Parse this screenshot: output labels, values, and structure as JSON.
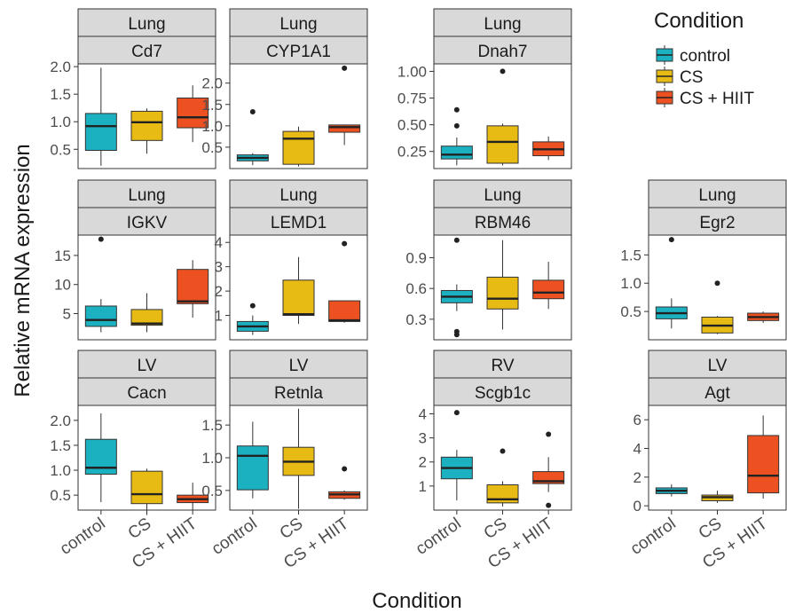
{
  "figure": {
    "ylabel": "Relative mRNA expression",
    "xlabel": "Condition",
    "legend": {
      "title": "Condition",
      "position": "top-right",
      "items": [
        {
          "label": "control",
          "color": "#1BB1C1"
        },
        {
          "label": "CS",
          "color": "#E8BB14"
        },
        {
          "label": "CS + HIIT",
          "color": "#EE5121"
        }
      ]
    },
    "x_tick_labels": [
      "control",
      "CS",
      "CS + HIIT"
    ]
  },
  "chart_data": [
    {
      "type": "boxplot",
      "tissue": "Lung",
      "gene": "Cd7",
      "ylim": [
        0.15,
        2.05
      ],
      "yticks": [
        0.5,
        1.0,
        1.5,
        2.0
      ],
      "ytick_labels": [
        "0.5",
        "1.0",
        "1.5",
        "2.0"
      ],
      "boxes": [
        {
          "condition": "control",
          "min": 0.2,
          "q1": 0.48,
          "median": 0.92,
          "q3": 1.15,
          "max": 1.98,
          "outliers": []
        },
        {
          "condition": "CS",
          "min": 0.42,
          "q1": 0.66,
          "median": 0.99,
          "q3": 1.19,
          "max": 1.24,
          "outliers": []
        },
        {
          "condition": "CS + HIIT",
          "min": 0.63,
          "q1": 0.89,
          "median": 1.08,
          "q3": 1.43,
          "max": 1.66,
          "outliers": []
        }
      ]
    },
    {
      "type": "boxplot",
      "tissue": "Lung",
      "gene": "CYP1A1",
      "ylim": [
        0.0,
        2.45
      ],
      "yticks": [
        0.5,
        1.0,
        1.5,
        2.0
      ],
      "ytick_labels": [
        "0.5",
        "1.0",
        "1.5",
        "2.0"
      ],
      "boxes": [
        {
          "condition": "control",
          "min": 0.08,
          "q1": 0.18,
          "median": 0.25,
          "q3": 0.32,
          "max": 0.36,
          "outliers": [
            1.33
          ]
        },
        {
          "condition": "CS",
          "min": 0.05,
          "q1": 0.1,
          "median": 0.7,
          "q3": 0.87,
          "max": 0.98,
          "outliers": []
        },
        {
          "condition": "CS + HIIT",
          "min": 0.55,
          "q1": 0.85,
          "median": 0.97,
          "q3": 1.02,
          "max": 1.03,
          "outliers": [
            2.35
          ]
        }
      ]
    },
    {
      "type": "boxplot",
      "tissue": "Lung",
      "gene": "Dnah7",
      "ylim": [
        0.09,
        1.07
      ],
      "yticks": [
        0.25,
        0.5,
        0.75,
        1.0
      ],
      "ytick_labels": [
        "0.25",
        "0.50",
        "0.75",
        "1.00"
      ],
      "boxes": [
        {
          "condition": "control",
          "min": 0.12,
          "q1": 0.18,
          "median": 0.22,
          "q3": 0.3,
          "max": 0.38,
          "outliers": [
            0.49,
            0.64
          ]
        },
        {
          "condition": "CS",
          "min": 0.12,
          "q1": 0.14,
          "median": 0.34,
          "q3": 0.49,
          "max": 0.51,
          "outliers": [
            1.0
          ]
        },
        {
          "condition": "CS + HIIT",
          "min": 0.17,
          "q1": 0.21,
          "median": 0.27,
          "q3": 0.34,
          "max": 0.39,
          "outliers": []
        }
      ]
    },
    {
      "type": "boxplot",
      "tissue": "Lung",
      "gene": "IGKV",
      "ylim": [
        0.5,
        18.5
      ],
      "yticks": [
        5,
        10,
        15
      ],
      "ytick_labels": [
        "5",
        "10",
        "15"
      ],
      "boxes": [
        {
          "condition": "control",
          "min": 1.8,
          "q1": 2.8,
          "median": 3.9,
          "q3": 6.3,
          "max": 7.5,
          "outliers": [
            17.8
          ]
        },
        {
          "condition": "CS",
          "min": 1.8,
          "q1": 3.0,
          "median": 3.3,
          "q3": 5.7,
          "max": 8.5,
          "outliers": []
        },
        {
          "condition": "CS + HIIT",
          "min": 4.3,
          "q1": 6.7,
          "median": 7.1,
          "q3": 12.6,
          "max": 14.2,
          "outliers": []
        }
      ]
    },
    {
      "type": "boxplot",
      "tissue": "Lung",
      "gene": "LEMD1",
      "ylim": [
        0.0,
        4.3
      ],
      "yticks": [
        1,
        2,
        3,
        4
      ],
      "ytick_labels": [
        "1",
        "2",
        "3",
        "4"
      ],
      "boxes": [
        {
          "condition": "control",
          "min": 0.2,
          "q1": 0.35,
          "median": 0.55,
          "q3": 0.75,
          "max": 1.0,
          "outliers": [
            1.4
          ]
        },
        {
          "condition": "CS",
          "min": 0.65,
          "q1": 1.0,
          "median": 1.05,
          "q3": 2.45,
          "max": 3.4,
          "outliers": []
        },
        {
          "condition": "CS + HIIT",
          "min": 0.7,
          "q1": 0.75,
          "median": 0.8,
          "q3": 1.6,
          "max": 1.6,
          "outliers": [
            3.95
          ]
        }
      ]
    },
    {
      "type": "boxplot",
      "tissue": "Lung",
      "gene": "RBM46",
      "ylim": [
        0.1,
        1.12
      ],
      "yticks": [
        0.3,
        0.6,
        0.9
      ],
      "ytick_labels": [
        "0.3",
        "0.6",
        "0.9"
      ],
      "boxes": [
        {
          "condition": "control",
          "min": 0.38,
          "q1": 0.46,
          "median": 0.52,
          "q3": 0.58,
          "max": 0.64,
          "outliers": [
            1.07,
            0.18,
            0.15
          ]
        },
        {
          "condition": "CS",
          "min": 0.2,
          "q1": 0.4,
          "median": 0.5,
          "q3": 0.71,
          "max": 1.07,
          "outliers": []
        },
        {
          "condition": "CS + HIIT",
          "min": 0.4,
          "q1": 0.5,
          "median": 0.56,
          "q3": 0.68,
          "max": 0.86,
          "outliers": []
        }
      ]
    },
    {
      "type": "boxplot",
      "tissue": "Lung",
      "gene": "Egr2",
      "ylim": [
        0.0,
        1.85
      ],
      "yticks": [
        0.5,
        1.0,
        1.5
      ],
      "ytick_labels": [
        "0.5",
        "1.0",
        "1.5"
      ],
      "boxes": [
        {
          "condition": "control",
          "min": 0.2,
          "q1": 0.37,
          "median": 0.47,
          "q3": 0.58,
          "max": 0.73,
          "outliers": [
            1.77
          ]
        },
        {
          "condition": "CS",
          "min": 0.1,
          "q1": 0.12,
          "median": 0.25,
          "q3": 0.4,
          "max": 0.42,
          "outliers": [
            1.0
          ]
        },
        {
          "condition": "CS + HIIT",
          "min": 0.3,
          "q1": 0.34,
          "median": 0.4,
          "q3": 0.47,
          "max": 0.5,
          "outliers": []
        }
      ]
    },
    {
      "type": "boxplot",
      "tissue": "LV",
      "gene": "Cacn",
      "ylim": [
        0.2,
        2.3
      ],
      "yticks": [
        0.5,
        1.0,
        1.5,
        2.0
      ],
      "ytick_labels": [
        "0.5",
        "1.0",
        "1.5",
        "2.0"
      ],
      "boxes": [
        {
          "condition": "control",
          "min": 0.36,
          "q1": 0.92,
          "median": 1.05,
          "q3": 1.62,
          "max": 2.14,
          "outliers": []
        },
        {
          "condition": "CS",
          "min": 0.1,
          "q1": 0.33,
          "median": 0.52,
          "q3": 0.98,
          "max": 1.03,
          "outliers": []
        },
        {
          "condition": "CS + HIIT",
          "min": 0.2,
          "q1": 0.35,
          "median": 0.42,
          "q3": 0.5,
          "max": 0.75,
          "outliers": []
        }
      ]
    },
    {
      "type": "boxplot",
      "tissue": "LV",
      "gene": "Retnla",
      "ylim": [
        0.2,
        1.8
      ],
      "yticks": [
        0.5,
        1.0,
        1.5
      ],
      "ytick_labels": [
        "0.5",
        "1.0",
        "1.5"
      ],
      "boxes": [
        {
          "condition": "control",
          "min": 0.38,
          "q1": 0.51,
          "median": 1.03,
          "q3": 1.18,
          "max": 1.55,
          "outliers": []
        },
        {
          "condition": "CS",
          "min": 0.22,
          "q1": 0.73,
          "median": 0.94,
          "q3": 1.16,
          "max": 1.75,
          "outliers": []
        },
        {
          "condition": "CS + HIIT",
          "min": 0.36,
          "q1": 0.38,
          "median": 0.44,
          "q3": 0.48,
          "max": 0.5,
          "outliers": [
            0.83
          ]
        }
      ]
    },
    {
      "type": "boxplot",
      "tissue": "RV",
      "gene": "Scgb1c",
      "ylim": [
        0.0,
        4.35
      ],
      "yticks": [
        1,
        2,
        3,
        4
      ],
      "ytick_labels": [
        "1",
        "2",
        "3",
        "4"
      ],
      "boxes": [
        {
          "condition": "control",
          "min": 0.4,
          "q1": 1.3,
          "median": 1.75,
          "q3": 2.2,
          "max": 2.5,
          "outliers": [
            4.05
          ]
        },
        {
          "condition": "CS",
          "min": 0.15,
          "q1": 0.3,
          "median": 0.45,
          "q3": 1.05,
          "max": 1.2,
          "outliers": [
            2.45
          ]
        },
        {
          "condition": "CS + HIIT",
          "min": 0.75,
          "q1": 1.1,
          "median": 1.2,
          "q3": 1.6,
          "max": 2.2,
          "outliers": [
            3.15,
            0.2
          ]
        }
      ]
    },
    {
      "type": "boxplot",
      "tissue": "LV",
      "gene": "Agt",
      "ylim": [
        -0.3,
        7.0
      ],
      "yticks": [
        0,
        2,
        4,
        6
      ],
      "ytick_labels": [
        "0",
        "2",
        "4",
        "6"
      ],
      "boxes": [
        {
          "condition": "control",
          "min": 0.65,
          "q1": 0.85,
          "median": 1.05,
          "q3": 1.25,
          "max": 1.5,
          "outliers": []
        },
        {
          "condition": "CS",
          "min": 0.2,
          "q1": 0.35,
          "median": 0.6,
          "q3": 0.75,
          "max": 1.05,
          "outliers": []
        },
        {
          "condition": "CS + HIIT",
          "min": 0.5,
          "q1": 0.9,
          "median": 2.1,
          "q3": 4.9,
          "max": 6.3,
          "outliers": []
        }
      ]
    }
  ]
}
